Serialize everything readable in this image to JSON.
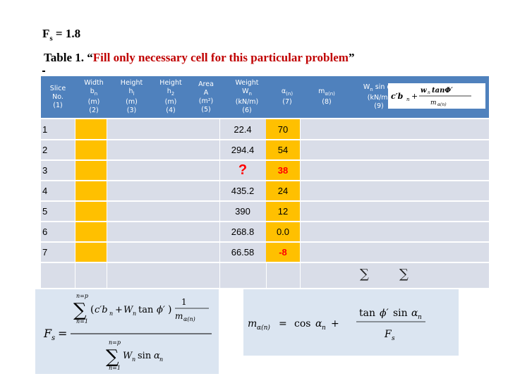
{
  "top": {
    "fs_label": "F",
    "fs_sub": "s",
    "fs_value": " = 1.8"
  },
  "caption": {
    "prefix": "Table 1. “",
    "red_text": "Fill only necessary cell for this particular problem",
    "suffix": "”"
  },
  "table": {
    "headers": [
      {
        "l1": "Slice",
        "l2": "No.",
        "l3": "(1)"
      },
      {
        "l1": "Width",
        "l2": "b",
        "l2sub": "n",
        "l3": "(m)",
        "l4": "(2)"
      },
      {
        "l1": "Height",
        "l2": "h",
        "l2sub": "l",
        "l3": "(m)",
        "l4": "(3)"
      },
      {
        "l1": "Height",
        "l2": "h",
        "l2sub": "2",
        "l3": "(m)",
        "l4": "(4)"
      },
      {
        "l1": "Area",
        "l2": "A",
        "l3": "(m²)",
        "l4": "(5)"
      },
      {
        "l1": "Weight",
        "l2": "W",
        "l2sub": "n",
        "l3": "(kN/m)",
        "l4": "(6)"
      },
      {
        "l1": "α",
        "l1sub": "(n)",
        "l2": "(7)"
      },
      {
        "l1": "m",
        "l1sub": "α(n)",
        "l2": "(8)"
      },
      {
        "l1": "W",
        "l1sub": "n",
        "l1b": " sin α",
        "l1bsub": "n",
        "l2": "(kN/m)",
        "l3": "(9)"
      }
    ],
    "rows": [
      {
        "slice": "1",
        "weight": "22.4",
        "alpha": "70"
      },
      {
        "slice": "2",
        "weight": "294.4",
        "alpha": "54"
      },
      {
        "slice": "3",
        "weight": "?",
        "alpha": "38"
      },
      {
        "slice": "4",
        "weight": "435.2",
        "alpha": "24"
      },
      {
        "slice": "5",
        "weight": "390",
        "alpha": "12"
      },
      {
        "slice": "6",
        "weight": "268.8",
        "alpha": "0.0"
      },
      {
        "slice": "7",
        "weight": "66.58",
        "alpha": "-8"
      }
    ],
    "sum_symbol": "∑"
  },
  "formulas": {
    "col10_header": "c′bₙ + Wₙ tanφ′ / mα(n)",
    "fs_formula": "Fₛ = Σₙ₌₁ᵖ (c′bₙ + Wₙ tan φ′) 1/mα(ₙ) / Σₙ₌₁ᵖ Wₙ sin αₙ",
    "m_formula": "mα(ₙ) = cos αₙ + tan φ′ sin αₙ / Fₛ"
  },
  "colors": {
    "header_bg": "#4f81bd",
    "body_bg": "#d9dde8",
    "highlight": "#ffc000",
    "red": "#ff0000",
    "formula_bg": "#dbe5f1"
  }
}
